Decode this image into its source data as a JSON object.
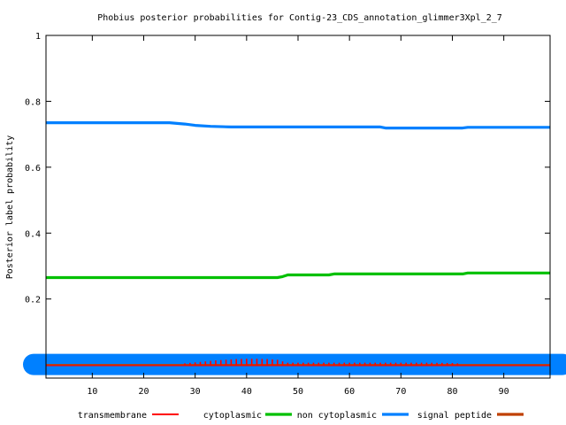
{
  "chart_data": {
    "type": "line",
    "title": "Phobius posterior probabilities for Contig-23_CDS_annotation_glimmer3Xpl_2_7",
    "xlabel": "",
    "ylabel": "Posterior label probability",
    "xlim": [
      1,
      99
    ],
    "ylim": [
      -0.04,
      1
    ],
    "x_ticks": [
      10,
      20,
      30,
      40,
      50,
      60,
      70,
      80,
      90
    ],
    "y_ticks": [
      0.2,
      0.4,
      0.6,
      0.8,
      1
    ],
    "y_tick_labels": [
      "0.2",
      "0.4",
      "0.6",
      "0.8",
      "1"
    ],
    "grid": false,
    "legend_position": "bottom",
    "series": [
      {
        "name": "transmembrane",
        "color": "#ff0000",
        "style": "impulses",
        "x": [
          1,
          5,
          10,
          15,
          20,
          25,
          28,
          30,
          32,
          34,
          36,
          38,
          40,
          42,
          44,
          46,
          47,
          48,
          50,
          55,
          60,
          65,
          70,
          75,
          80,
          83,
          85,
          90,
          95,
          99
        ],
        "y": [
          0,
          0,
          0,
          0,
          0,
          0,
          0.002,
          0.005,
          0.008,
          0.011,
          0.013,
          0.015,
          0.016,
          0.016,
          0.015,
          0.013,
          0.008,
          0.004,
          0.004,
          0.004,
          0.004,
          0.004,
          0.004,
          0.004,
          0.003,
          0,
          0,
          0,
          0,
          0
        ]
      },
      {
        "name": "cytoplasmic",
        "color": "#00c000",
        "x": [
          1,
          46,
          47,
          48,
          56,
          57,
          82,
          83,
          99
        ],
        "y": [
          0.265,
          0.265,
          0.268,
          0.273,
          0.273,
          0.276,
          0.276,
          0.279,
          0.279
        ]
      },
      {
        "name": "non cytoplasmic",
        "color": "#0080ff",
        "x": [
          1,
          25,
          28,
          30,
          33,
          37,
          66,
          67,
          82,
          83,
          99
        ],
        "y": [
          0.735,
          0.735,
          0.731,
          0.727,
          0.724,
          0.722,
          0.722,
          0.719,
          0.719,
          0.721,
          0.721
        ]
      },
      {
        "name": "signal peptide",
        "color": "#c04000",
        "x": [
          1,
          99
        ],
        "y": [
          0,
          0
        ]
      }
    ]
  }
}
